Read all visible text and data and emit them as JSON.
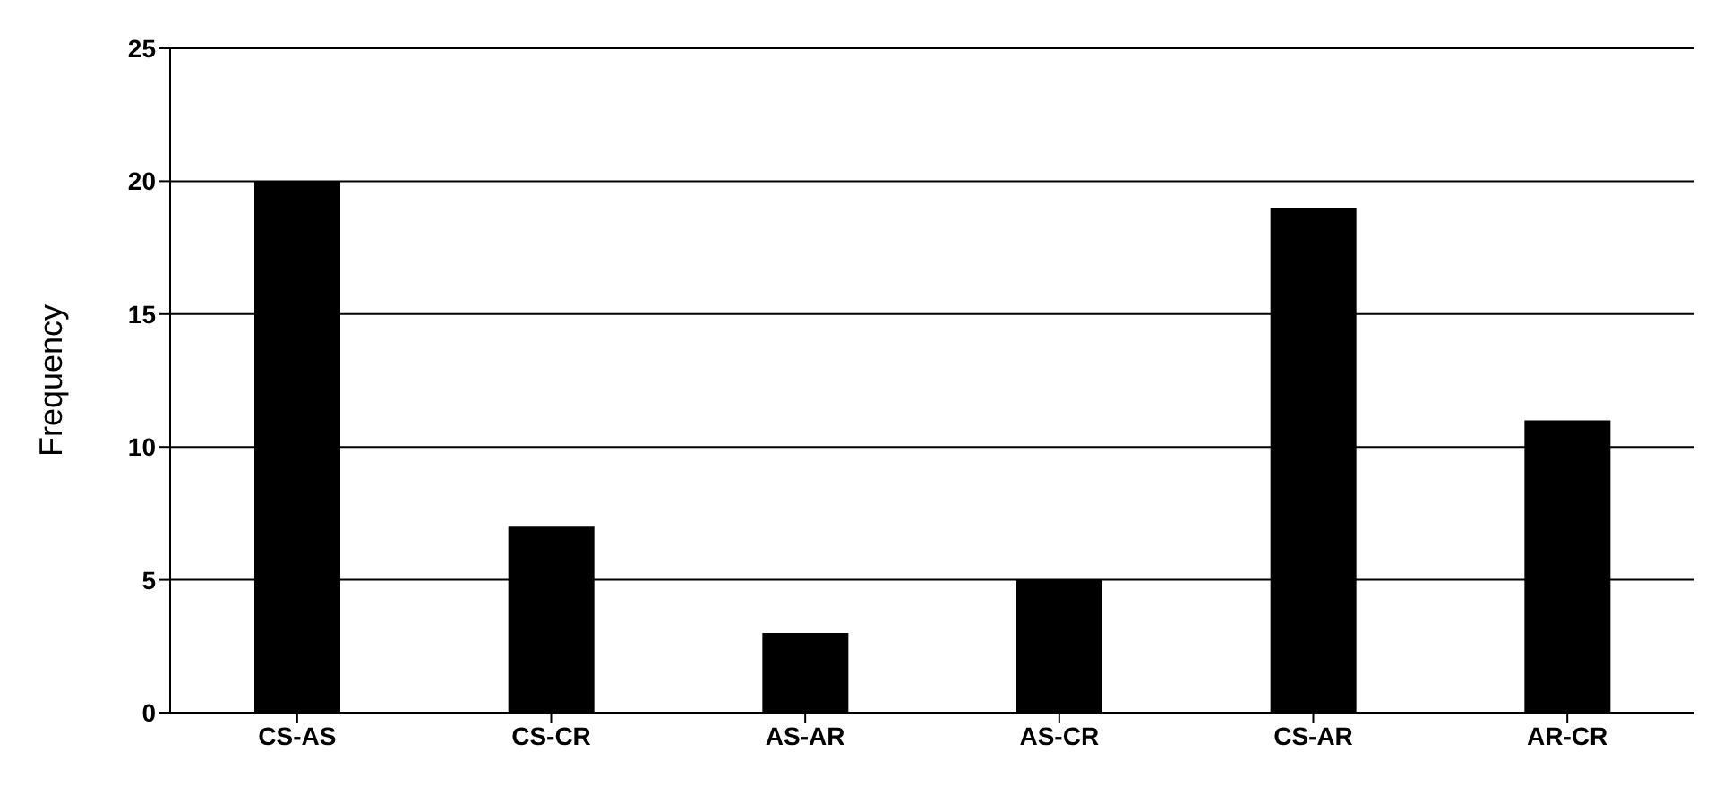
{
  "chart_data": {
    "type": "bar",
    "ylabel": "Frequency",
    "categories": [
      "CS-AS",
      "CS-CR",
      "AS-AR",
      "AS-CR",
      "CS-AR",
      "AR-CR"
    ],
    "values": [
      20,
      7,
      3,
      5,
      19,
      11
    ],
    "color": "#000000",
    "ylim": [
      0,
      25
    ],
    "yticks": [
      0,
      5,
      10,
      15,
      20,
      25
    ],
    "grid": "y",
    "legend": false
  }
}
